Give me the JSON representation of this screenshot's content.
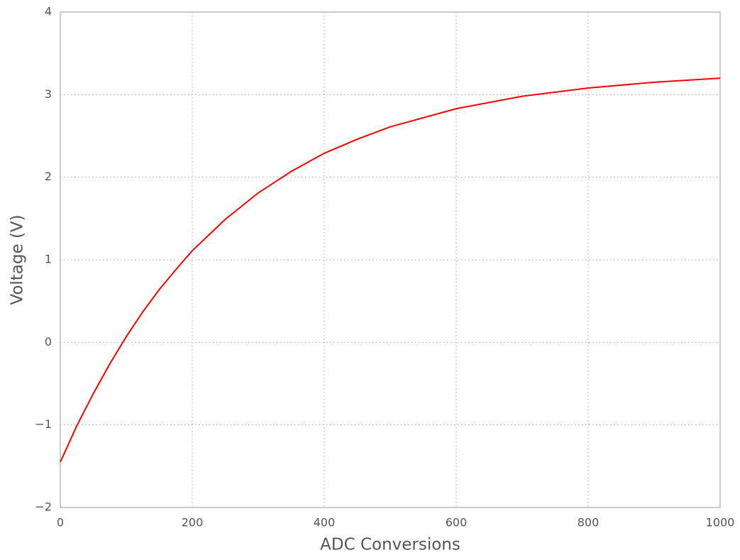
{
  "chart_data": {
    "type": "line",
    "x_label": "ADC Conversions",
    "y_label": "Voltage (V)",
    "x": [
      0,
      25,
      50,
      75,
      100,
      125,
      150,
      175,
      200,
      250,
      300,
      350,
      400,
      450,
      500,
      600,
      700,
      800,
      900,
      1000
    ],
    "series": [
      {
        "color": "#ff0000",
        "values": [
          -1.45,
          -1.01,
          -0.62,
          -0.26,
          0.07,
          0.37,
          0.64,
          0.88,
          1.11,
          1.49,
          1.81,
          2.07,
          2.29,
          2.46,
          2.61,
          2.83,
          2.98,
          3.08,
          3.15,
          3.2
        ]
      }
    ],
    "xlim": [
      0,
      1000
    ],
    "ylim": [
      -2,
      4
    ],
    "xticks": [
      0,
      200,
      400,
      600,
      800,
      1000
    ],
    "yticks": [
      {
        "value": -2,
        "label": "−2"
      },
      {
        "value": -1,
        "label": "−1"
      },
      0,
      1,
      2,
      3,
      4
    ],
    "grid": true
  }
}
